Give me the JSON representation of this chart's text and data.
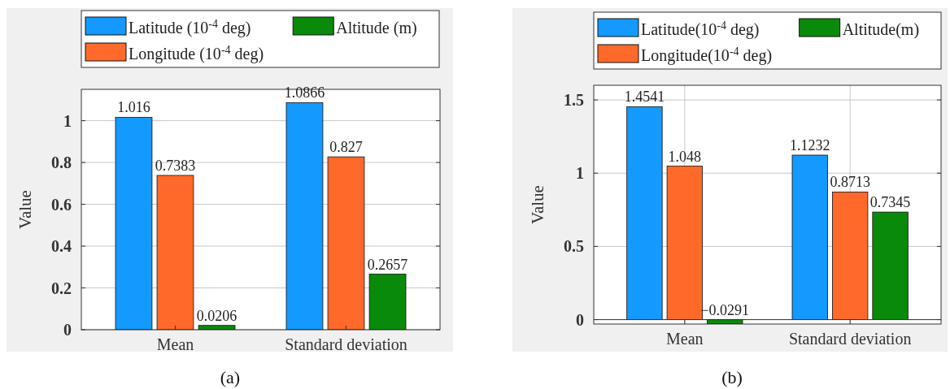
{
  "chart_data": [
    {
      "type": "bar",
      "categories": [
        "Mean",
        "Standard deviation"
      ],
      "ylabel": "Value",
      "ylim": [
        0,
        1.15
      ],
      "yticks": [
        0,
        0.2,
        0.4,
        0.6,
        0.8,
        1
      ],
      "grid": "y",
      "legend": "top",
      "annotations": [
        "(a)"
      ],
      "series": [
        {
          "name": "Latitude (10$^{-4}$ deg)",
          "color": "#1499ff",
          "values": [
            1.016,
            1.0866
          ],
          "value_labels": [
            "1.016",
            "1.0866"
          ]
        },
        {
          "name": "Longitude (10$^{-4}$ deg)",
          "color": "#ff6a2a",
          "values": [
            0.7383,
            0.827
          ],
          "value_labels": [
            "0.7383",
            "0.827"
          ]
        },
        {
          "name": "Altitude (m)",
          "color": "#0a8a0a",
          "values": [
            0.0206,
            0.2657
          ],
          "value_labels": [
            "0.0206",
            "0.2657"
          ]
        }
      ]
    },
    {
      "type": "bar",
      "categories": [
        "Mean",
        "Standard deviation"
      ],
      "ylabel": "Value",
      "ylim": [
        -0.03,
        1.6
      ],
      "yticks": [
        0,
        0.5,
        1,
        1.5
      ],
      "grid": true,
      "legend": "top",
      "annotations": [
        "(b)"
      ],
      "series": [
        {
          "name": "Latitude(10$^{-4}$ deg)",
          "color": "#1499ff",
          "values": [
            1.4541,
            1.1232
          ],
          "value_labels": [
            "1.4541",
            "1.1232"
          ]
        },
        {
          "name": "Longitude(10$^{-4}$ deg)",
          "color": "#ff6a2a",
          "values": [
            1.048,
            0.8713
          ],
          "value_labels": [
            "1.048",
            "0.8713"
          ]
        },
        {
          "name": "Altitude(m)",
          "color": "#0a8a0a",
          "values": [
            -0.0291,
            0.7345
          ],
          "value_labels": [
            "−0.0291",
            "0.7345"
          ]
        }
      ]
    }
  ]
}
